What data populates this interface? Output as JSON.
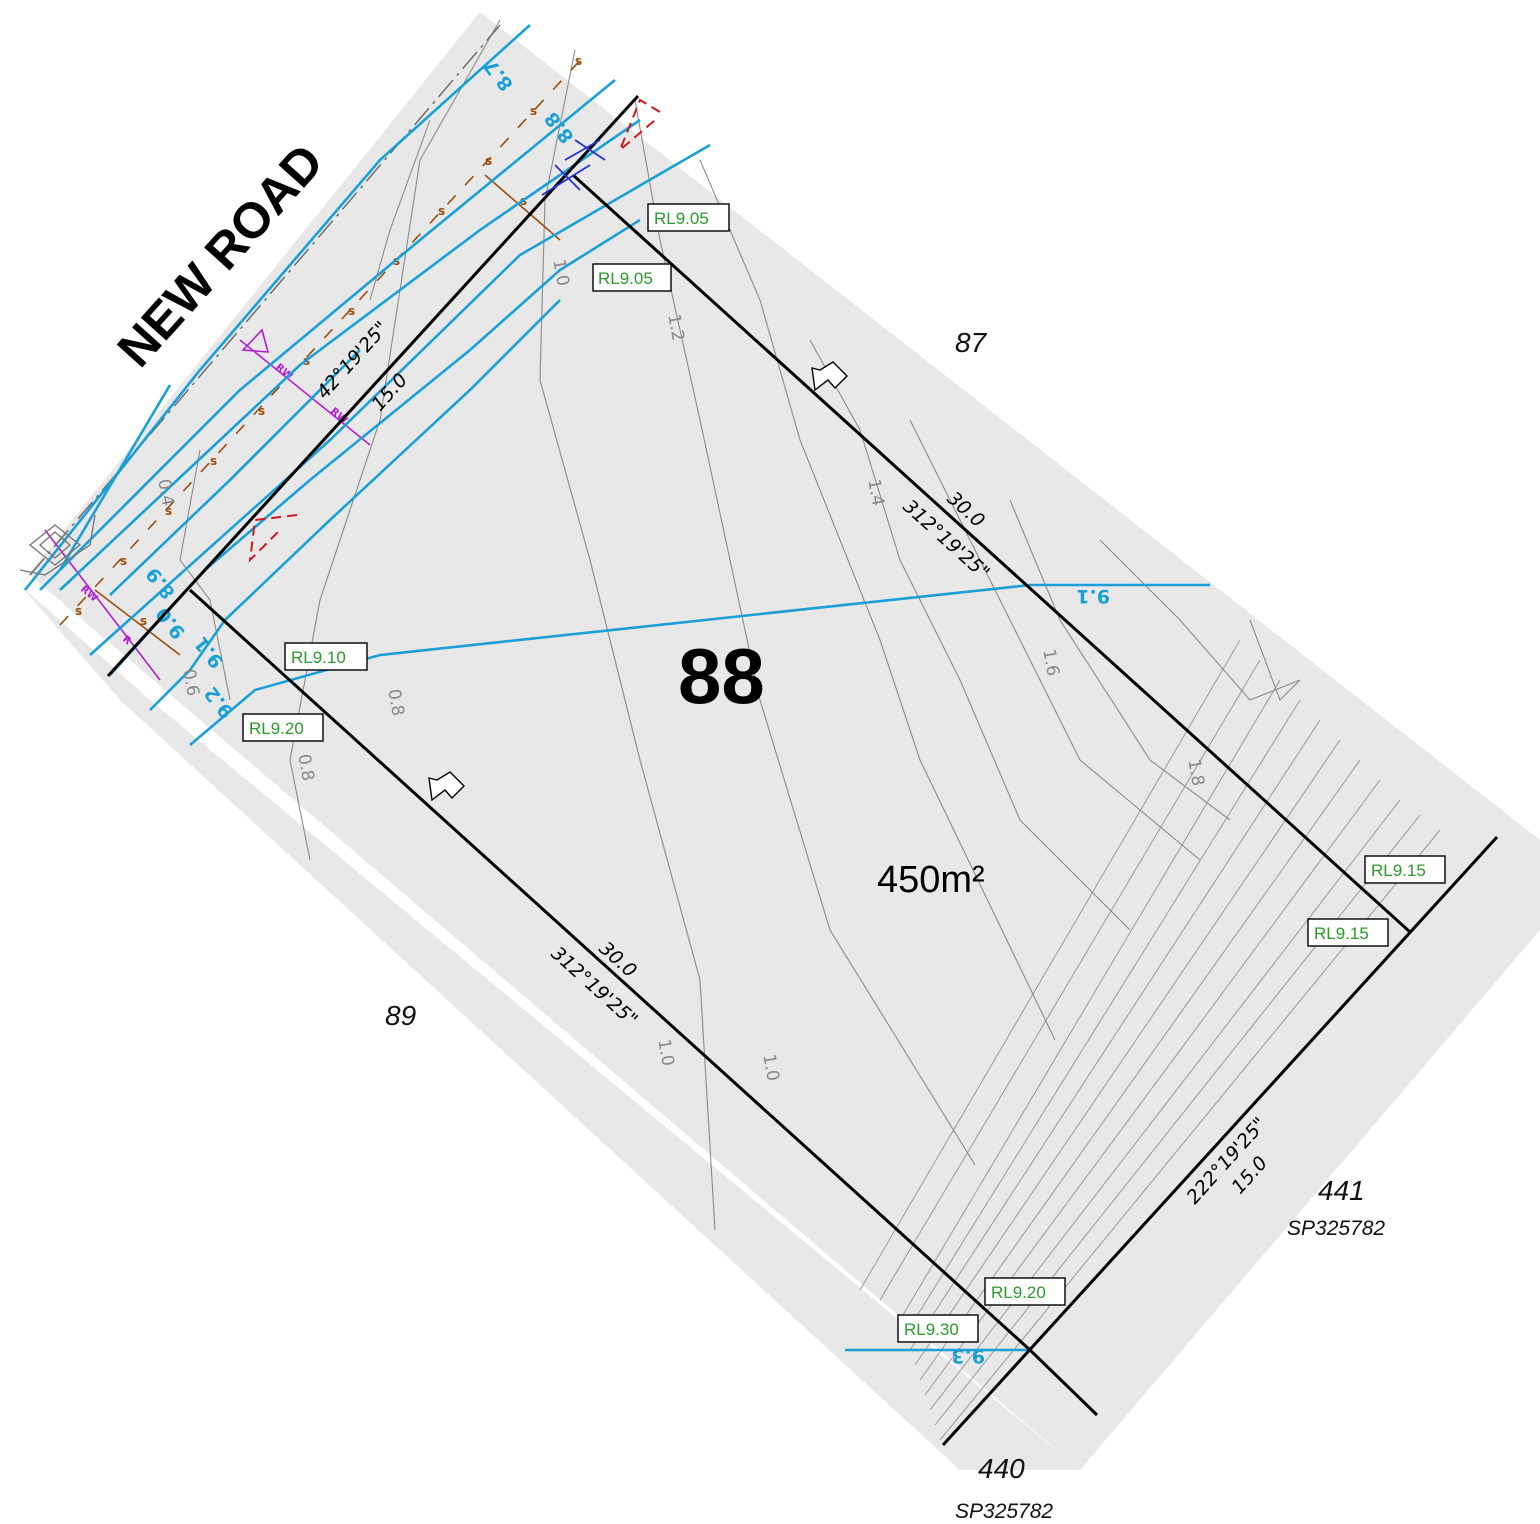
{
  "road_name": "NEW  ROAD",
  "lot": {
    "number": "88",
    "area": "450m²"
  },
  "neighbours": {
    "north": "87",
    "south": "89",
    "east": "441",
    "southeast": "440",
    "east_plan": "SP325782",
    "southeast_plan": "SP325782"
  },
  "bearings": {
    "front": "42°19'25\"",
    "front_length": "15.0",
    "side_ne": "312°19'25\"",
    "side_ne_length": "30.0",
    "side_sw": "312°19'25\"",
    "side_sw_length": "30.0",
    "rear": "222°19'25\"",
    "rear_length": "15.0"
  },
  "spot_levels": [
    "RL9.05",
    "RL9.05",
    "RL9.10",
    "RL9.20",
    "RL9.15",
    "RL9.15",
    "RL9.20",
    "RL9.30"
  ],
  "design_contours": [
    "8.7",
    "8.8",
    "8.9",
    "9.0",
    "9.1",
    "9.1",
    "9.2",
    "9.3"
  ],
  "natural_contours": [
    "0.4",
    "0.6",
    "0.8",
    "0.8",
    "1.0",
    "1.2",
    "1.4",
    "1.6",
    "1.8",
    "1.0",
    "1.0"
  ],
  "colors": {
    "ground": "#e8e8e8",
    "boundary": "#000000",
    "design_contour": "#1aa0d6",
    "natural_contour": "#8c8c8c",
    "sewer": "#9a4e0e",
    "spot_level_text": "#2a9a2a",
    "retaining": "#d01818",
    "easement": "#b020d0",
    "hatch": "#9a9a9a"
  },
  "icons": [
    "flow-arrow-icon",
    "sewer-symbol-icon",
    "cross-marker-icon"
  ]
}
